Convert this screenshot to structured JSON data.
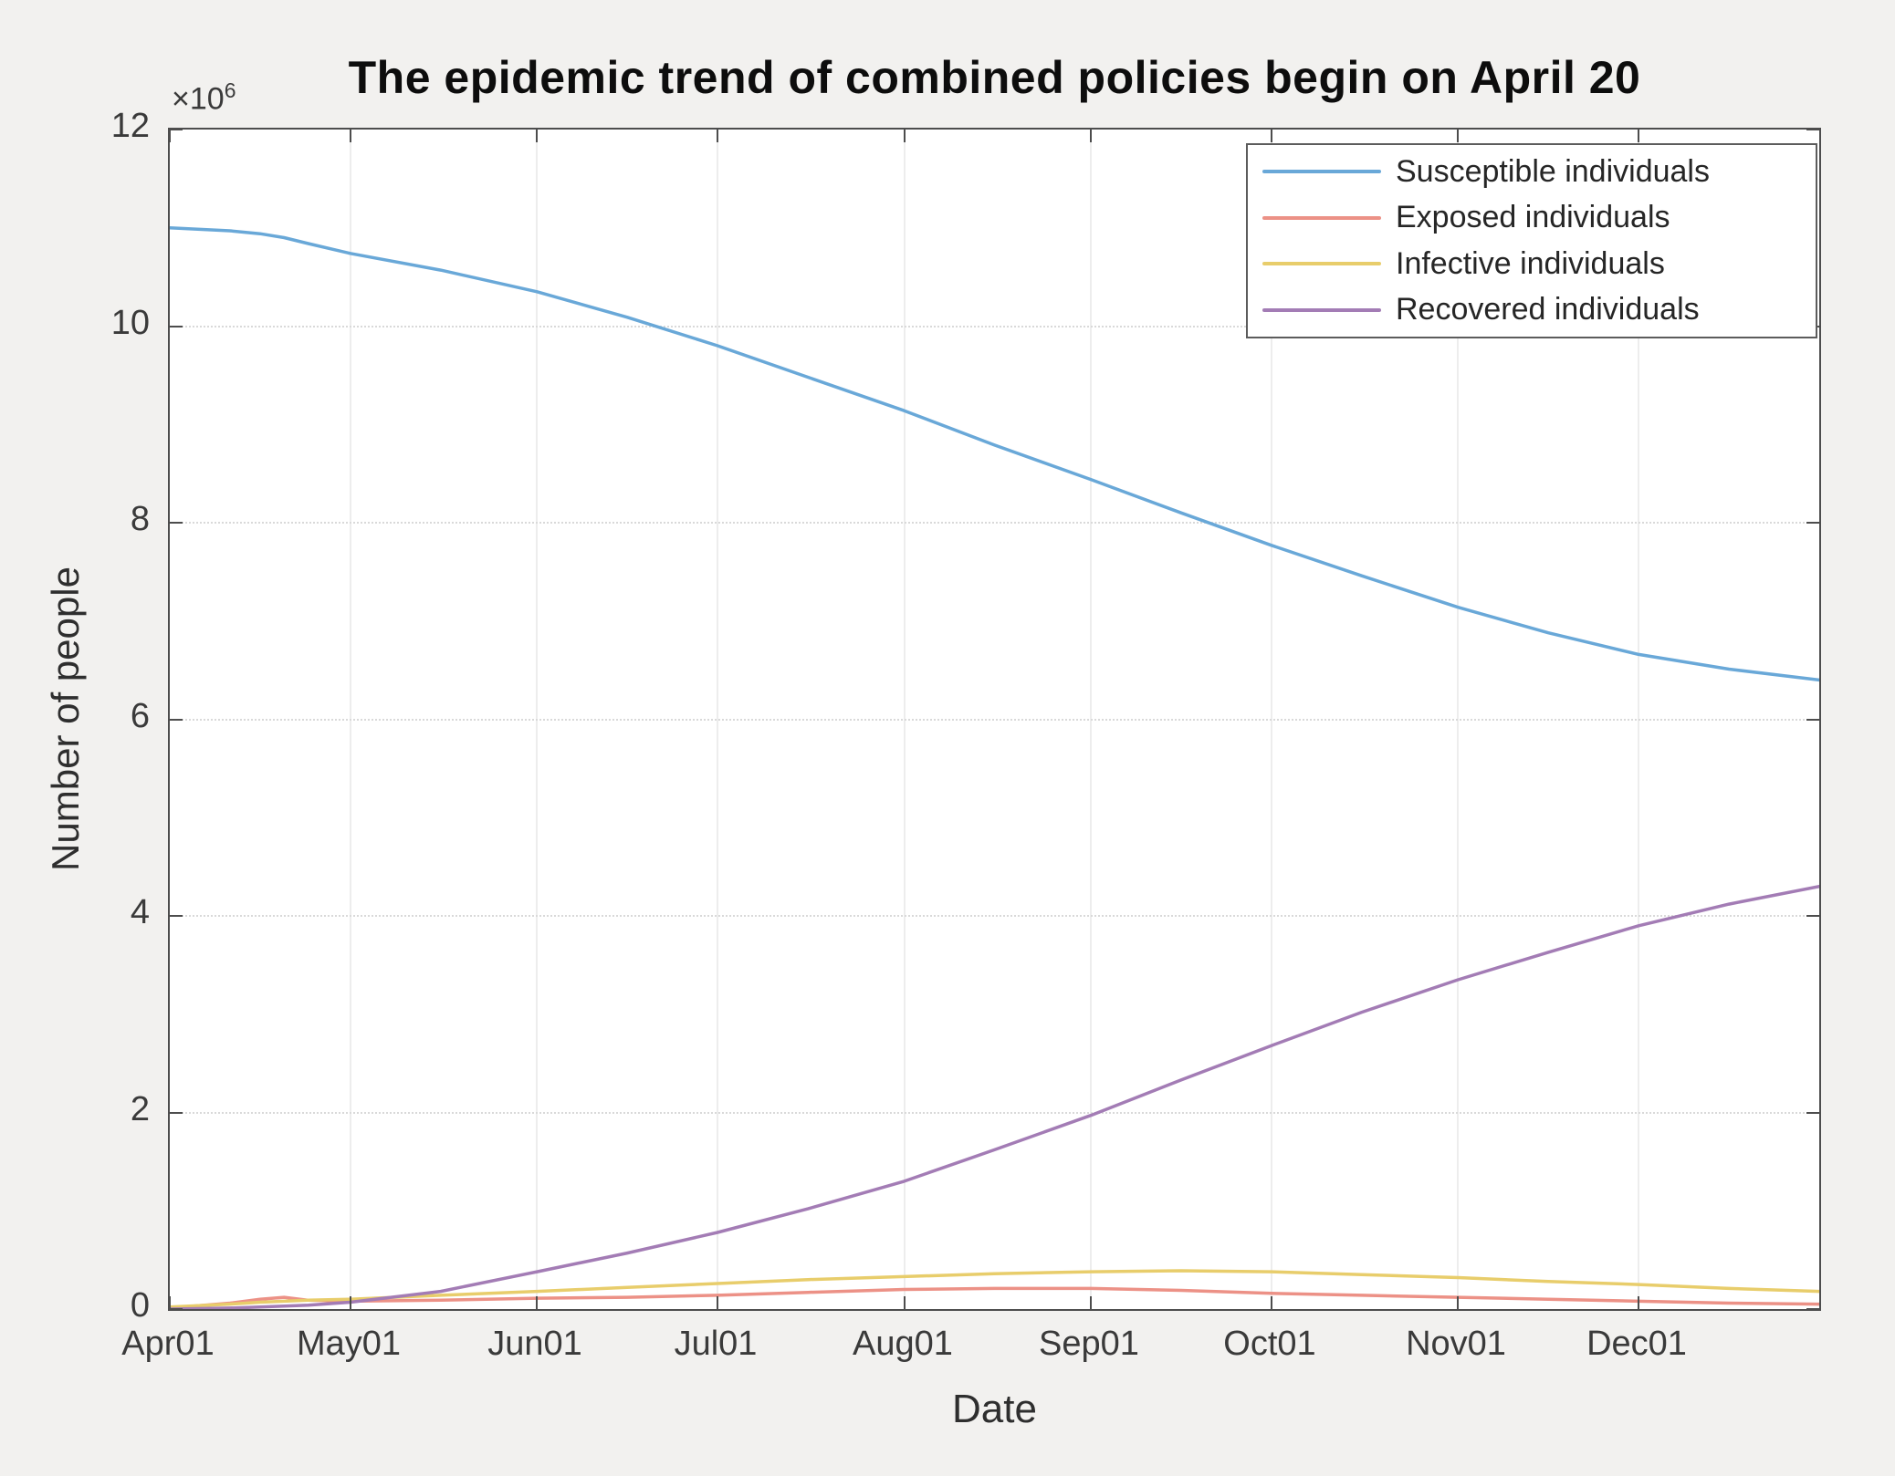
{
  "chart_data": {
    "type": "line",
    "title": "The epidemic trend of combined policies begin on April 20",
    "xlabel": "Date",
    "ylabel": "Number of people",
    "y_scale_base": "×10",
    "y_scale_exp": "6",
    "values_unit": "millions of people",
    "x_unit": "days since Apr01",
    "x_range_days": [
      0,
      274
    ],
    "ylim_millions": [
      0,
      12
    ],
    "x_tick_labels": [
      "Apr01",
      "May01",
      "Jun01",
      "Jul01",
      "Aug01",
      "Sep01",
      "Oct01",
      "Nov01",
      "Dec01"
    ],
    "x_tick_days": [
      0,
      30,
      61,
      91,
      122,
      153,
      183,
      214,
      244
    ],
    "y_tick_labels": [
      "0",
      "2",
      "4",
      "6",
      "8",
      "10",
      "12"
    ],
    "y_tick_values_millions": [
      0,
      2,
      4,
      6,
      8,
      10,
      12
    ],
    "grid": true,
    "legend_position": "top-right",
    "x_days": [
      0,
      10,
      15,
      19,
      23,
      30,
      45,
      61,
      76,
      91,
      106,
      122,
      137,
      153,
      168,
      183,
      198,
      214,
      229,
      244,
      259,
      274
    ],
    "series": [
      {
        "name": "Susceptible individuals",
        "color": "#69a8d8",
        "values_millions": [
          11.0,
          10.97,
          10.94,
          10.9,
          10.84,
          10.74,
          10.57,
          10.35,
          10.09,
          9.8,
          9.48,
          9.14,
          8.79,
          8.44,
          8.1,
          7.77,
          7.46,
          7.14,
          6.88,
          6.66,
          6.51,
          6.4
        ]
      },
      {
        "name": "Exposed individuals",
        "color": "#ec9186",
        "values_millions": [
          0.01,
          0.06,
          0.1,
          0.12,
          0.09,
          0.08,
          0.09,
          0.11,
          0.12,
          0.14,
          0.17,
          0.2,
          0.21,
          0.21,
          0.19,
          0.16,
          0.14,
          0.12,
          0.1,
          0.08,
          0.06,
          0.05
        ]
      },
      {
        "name": "Infective individuals",
        "color": "#e8cd6b",
        "values_millions": [
          0.02,
          0.05,
          0.07,
          0.08,
          0.09,
          0.1,
          0.14,
          0.18,
          0.22,
          0.26,
          0.3,
          0.33,
          0.36,
          0.38,
          0.39,
          0.38,
          0.35,
          0.32,
          0.28,
          0.25,
          0.21,
          0.18
        ]
      },
      {
        "name": "Recovered individuals",
        "color": "#a37cb5",
        "values_millions": [
          0.0,
          0.01,
          0.02,
          0.03,
          0.04,
          0.07,
          0.18,
          0.38,
          0.57,
          0.78,
          1.02,
          1.3,
          1.62,
          1.97,
          2.33,
          2.68,
          3.02,
          3.35,
          3.63,
          3.9,
          4.12,
          4.3
        ]
      }
    ],
    "colors": {
      "axis": "#4d4d4d",
      "grid_vertical": "#ededed",
      "grid_horizontal": "#d9d9d9",
      "plot_background": "#ffffff",
      "figure_background": "#f2f1ef"
    }
  }
}
